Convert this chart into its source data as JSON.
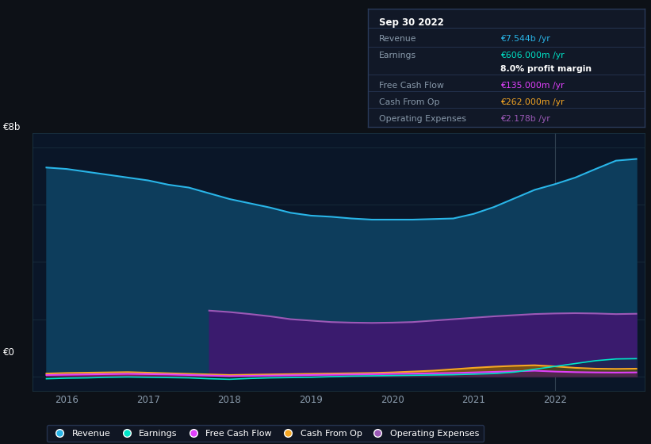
{
  "background_color": "#0d1117",
  "plot_bg_color": "#0a1628",
  "ylabel_top": "€8b",
  "ylabel_bottom": "€0",
  "xmin": 2015.58,
  "xmax": 2023.1,
  "ymin": -0.5,
  "ymax": 8.5,
  "grid_color": "#1a3040",
  "revenue_color": "#29b5e8",
  "revenue_fill": "#0d3d5c",
  "earnings_color": "#00e5c8",
  "fcf_color": "#e040fb",
  "cashop_color": "#f5a623",
  "opex_color": "#9b59b6",
  "opex_fill": "#3d1a70",
  "revenue": {
    "x": [
      2015.75,
      2016.0,
      2016.25,
      2016.5,
      2016.75,
      2017.0,
      2017.25,
      2017.5,
      2017.75,
      2018.0,
      2018.25,
      2018.5,
      2018.75,
      2019.0,
      2019.25,
      2019.5,
      2019.75,
      2020.0,
      2020.25,
      2020.5,
      2020.75,
      2021.0,
      2021.25,
      2021.5,
      2021.75,
      2022.0,
      2022.25,
      2022.5,
      2022.75,
      2023.0
    ],
    "y": [
      7.3,
      7.25,
      7.15,
      7.05,
      6.95,
      6.85,
      6.7,
      6.6,
      6.4,
      6.2,
      6.05,
      5.9,
      5.72,
      5.62,
      5.58,
      5.52,
      5.48,
      5.48,
      5.48,
      5.5,
      5.52,
      5.68,
      5.92,
      6.22,
      6.52,
      6.72,
      6.95,
      7.25,
      7.54,
      7.6
    ]
  },
  "earnings": {
    "x": [
      2015.75,
      2016.0,
      2016.25,
      2016.5,
      2016.75,
      2017.0,
      2017.25,
      2017.5,
      2017.75,
      2018.0,
      2018.25,
      2018.5,
      2018.75,
      2019.0,
      2019.25,
      2019.5,
      2019.75,
      2020.0,
      2020.25,
      2020.5,
      2020.75,
      2021.0,
      2021.25,
      2021.5,
      2021.75,
      2022.0,
      2022.25,
      2022.5,
      2022.75,
      2023.0
    ],
    "y": [
      -0.08,
      -0.06,
      -0.05,
      -0.03,
      -0.02,
      -0.03,
      -0.04,
      -0.05,
      -0.08,
      -0.1,
      -0.07,
      -0.05,
      -0.04,
      -0.03,
      -0.01,
      0.01,
      0.02,
      0.03,
      0.04,
      0.05,
      0.06,
      0.08,
      0.1,
      0.15,
      0.25,
      0.35,
      0.45,
      0.55,
      0.61,
      0.62
    ]
  },
  "fcf": {
    "x": [
      2015.75,
      2016.0,
      2016.25,
      2016.5,
      2016.75,
      2017.0,
      2017.25,
      2017.5,
      2017.75,
      2018.0,
      2018.25,
      2018.5,
      2018.75,
      2019.0,
      2019.25,
      2019.5,
      2019.75,
      2020.0,
      2020.25,
      2020.5,
      2020.75,
      2021.0,
      2021.25,
      2021.5,
      2021.75,
      2022.0,
      2022.25,
      2022.5,
      2022.75,
      2023.0
    ],
    "y": [
      0.05,
      0.06,
      0.07,
      0.08,
      0.09,
      0.08,
      0.07,
      0.05,
      0.03,
      0.01,
      0.02,
      0.03,
      0.04,
      0.05,
      0.06,
      0.07,
      0.08,
      0.09,
      0.1,
      0.11,
      0.12,
      0.14,
      0.16,
      0.18,
      0.2,
      0.17,
      0.15,
      0.14,
      0.135,
      0.14
    ]
  },
  "cashop": {
    "x": [
      2015.75,
      2016.0,
      2016.25,
      2016.5,
      2016.75,
      2017.0,
      2017.25,
      2017.5,
      2017.75,
      2018.0,
      2018.25,
      2018.5,
      2018.75,
      2019.0,
      2019.25,
      2019.5,
      2019.75,
      2020.0,
      2020.25,
      2020.5,
      2020.75,
      2021.0,
      2021.25,
      2021.5,
      2021.75,
      2022.0,
      2022.25,
      2022.5,
      2022.75,
      2023.0
    ],
    "y": [
      0.1,
      0.12,
      0.13,
      0.14,
      0.15,
      0.13,
      0.11,
      0.09,
      0.07,
      0.05,
      0.06,
      0.07,
      0.08,
      0.09,
      0.1,
      0.11,
      0.12,
      0.14,
      0.17,
      0.2,
      0.25,
      0.3,
      0.34,
      0.37,
      0.39,
      0.35,
      0.3,
      0.27,
      0.262,
      0.27
    ]
  },
  "opex": {
    "x": [
      2017.75,
      2018.0,
      2018.25,
      2018.5,
      2018.75,
      2019.0,
      2019.25,
      2019.5,
      2019.75,
      2020.0,
      2020.25,
      2020.5,
      2020.75,
      2021.0,
      2021.25,
      2021.5,
      2021.75,
      2022.0,
      2022.25,
      2022.5,
      2022.75,
      2023.0
    ],
    "y": [
      2.3,
      2.25,
      2.18,
      2.1,
      2.0,
      1.95,
      1.9,
      1.88,
      1.87,
      1.88,
      1.9,
      1.95,
      2.0,
      2.05,
      2.1,
      2.14,
      2.18,
      2.2,
      2.21,
      2.2,
      2.178,
      2.19
    ]
  },
  "tooltip": {
    "title": "Sep 30 2022",
    "title_color": "#ffffff",
    "bg_color": "#111827",
    "border_color": "#2a3a5a",
    "rows": [
      {
        "label": "Revenue",
        "label_color": "#8899aa",
        "value": "€7.544b /yr",
        "value_color": "#29b5e8"
      },
      {
        "label": "Earnings",
        "label_color": "#8899aa",
        "value": "€606.000m /yr",
        "value_color": "#00e5c8"
      },
      {
        "label": "",
        "label_color": "#ffffff",
        "value": "8.0% profit margin",
        "value_color": "#ffffff",
        "bold": true
      },
      {
        "label": "Free Cash Flow",
        "label_color": "#8899aa",
        "value": "€135.000m /yr",
        "value_color": "#e040fb"
      },
      {
        "label": "Cash From Op",
        "label_color": "#8899aa",
        "value": "€262.000m /yr",
        "value_color": "#f5a623"
      },
      {
        "label": "Operating Expenses",
        "label_color": "#8899aa",
        "value": "€2.178b /yr",
        "value_color": "#9b59b6"
      }
    ]
  },
  "legend": [
    {
      "label": "Revenue",
      "color": "#29b5e8"
    },
    {
      "label": "Earnings",
      "color": "#00e5c8"
    },
    {
      "label": "Free Cash Flow",
      "color": "#e040fb"
    },
    {
      "label": "Cash From Op",
      "color": "#f5a623"
    },
    {
      "label": "Operating Expenses",
      "color": "#9b59b6"
    }
  ],
  "vertical_line_x": 2022.0
}
